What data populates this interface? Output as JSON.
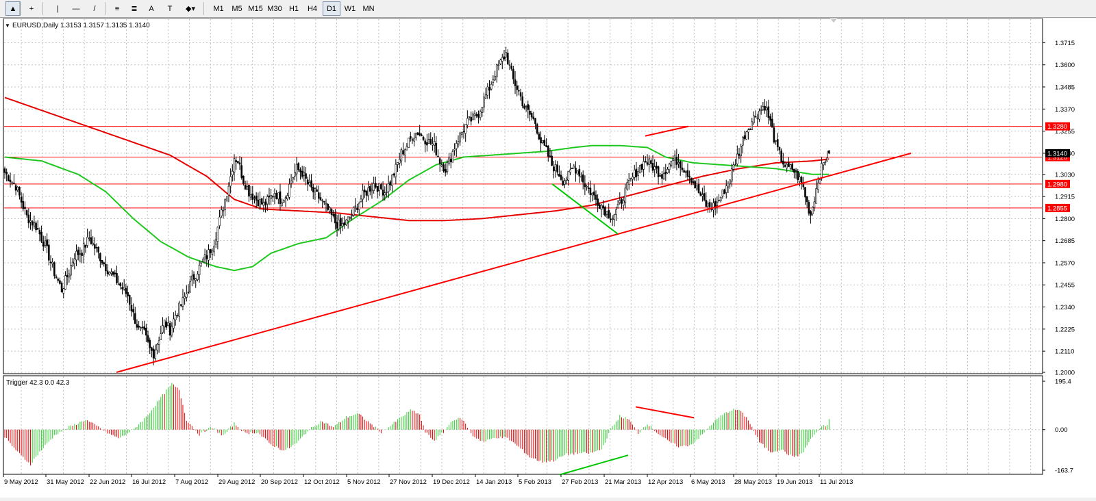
{
  "toolbar": {
    "tools": [
      {
        "name": "cursor-icon",
        "glyph": "▲"
      },
      {
        "name": "crosshair-icon",
        "glyph": "+"
      },
      {
        "name": "vertical-line-icon",
        "glyph": "|"
      },
      {
        "name": "horizontal-line-icon",
        "glyph": "—"
      },
      {
        "name": "trendline-icon",
        "glyph": "/"
      },
      {
        "name": "equidistant-channel-icon",
        "glyph": "≡"
      },
      {
        "name": "fibonacci-icon",
        "glyph": "≣"
      },
      {
        "name": "text-icon",
        "glyph": "A"
      },
      {
        "name": "text-label-icon",
        "glyph": "T"
      },
      {
        "name": "shapes-dropdown-icon",
        "glyph": "◆▾"
      }
    ],
    "timeframes": [
      "M1",
      "M5",
      "M15",
      "M30",
      "H1",
      "H4",
      "D1",
      "W1",
      "MN"
    ],
    "active_timeframe": "D1"
  },
  "chart_data": {
    "type": "candlestick",
    "symbol_header": "EURUSD,Daily  1.3153 1.3157 1.3135 1.3140",
    "price_axis": {
      "ylim": [
        1.2,
        1.377
      ],
      "ticks": [
        "1.3715",
        "1.3600",
        "1.3485",
        "1.3370",
        "1.3255",
        "1.3140",
        "1.3030",
        "1.2915",
        "1.2800",
        "1.2685",
        "1.2570",
        "1.2455",
        "1.2340",
        "1.2225",
        "1.2110",
        "1.2000"
      ]
    },
    "current_price": "1.3140",
    "horizontal_levels": [
      {
        "label": "1.3280",
        "price": 1.328
      },
      {
        "label": "1.3120",
        "price": 1.312
      },
      {
        "label": "1.2980",
        "price": 1.298
      },
      {
        "label": "1.2855",
        "price": 1.2855
      }
    ],
    "date_labels": [
      "9 May 2012",
      "31 May 2012",
      "22 Jun 2012",
      "16 Jul 2012",
      "7 Aug 2012",
      "29 Aug 2012",
      "20 Sep 2012",
      "12 Oct 2012",
      "5 Nov 2012",
      "27 Nov 2012",
      "19 Dec 2012",
      "14 Jan 2013",
      "5 Feb 2013",
      "27 Feb 2013",
      "21 Mar 2013",
      "12 Apr 2013",
      "6 May 2013",
      "28 May 2013",
      "19 Jun 2013",
      "11 Jul 2013"
    ],
    "price_path": [
      [
        0,
        1.304
      ],
      [
        6,
        1.297
      ],
      [
        12,
        1.281
      ],
      [
        17,
        1.276
      ],
      [
        22,
        1.266
      ],
      [
        27,
        1.252
      ],
      [
        31,
        1.243
      ],
      [
        34,
        1.25
      ],
      [
        38,
        1.261
      ],
      [
        42,
        1.263
      ],
      [
        46,
        1.27
      ],
      [
        49,
        1.265
      ],
      [
        52,
        1.26
      ],
      [
        55,
        1.255
      ],
      [
        59,
        1.25
      ],
      [
        63,
        1.245
      ],
      [
        67,
        1.24
      ],
      [
        70,
        1.23
      ],
      [
        73,
        1.222
      ],
      [
        76,
        1.22
      ],
      [
        79,
        1.212
      ],
      [
        81,
        1.21
      ],
      [
        84,
        1.218
      ],
      [
        87,
        1.226
      ],
      [
        90,
        1.222
      ],
      [
        93,
        1.23
      ],
      [
        96,
        1.235
      ],
      [
        99,
        1.241
      ],
      [
        102,
        1.248
      ],
      [
        105,
        1.253
      ],
      [
        108,
        1.258
      ],
      [
        111,
        1.262
      ],
      [
        114,
        1.268
      ],
      [
        117,
        1.279
      ],
      [
        120,
        1.29
      ],
      [
        123,
        1.302
      ],
      [
        125,
        1.312
      ],
      [
        127,
        1.31
      ],
      [
        130,
        1.3
      ],
      [
        133,
        1.294
      ],
      [
        137,
        1.29
      ],
      [
        141,
        1.287
      ],
      [
        144,
        1.29
      ],
      [
        147,
        1.294
      ],
      [
        150,
        1.29
      ],
      [
        153,
        1.292
      ],
      [
        156,
        1.3
      ],
      [
        159,
        1.306
      ],
      [
        162,
        1.304
      ],
      [
        165,
        1.298
      ],
      [
        168,
        1.294
      ],
      [
        171,
        1.291
      ],
      [
        174,
        1.287
      ],
      [
        177,
        1.283
      ],
      [
        180,
        1.278
      ],
      [
        183,
        1.276
      ],
      [
        186,
        1.278
      ],
      [
        189,
        1.282
      ],
      [
        192,
        1.287
      ],
      [
        195,
        1.292
      ],
      [
        198,
        1.295
      ],
      [
        201,
        1.298
      ],
      [
        204,
        1.296
      ],
      [
        207,
        1.294
      ],
      [
        210,
        1.299
      ],
      [
        213,
        1.306
      ],
      [
        216,
        1.314
      ],
      [
        219,
        1.318
      ],
      [
        222,
        1.323
      ],
      [
        225,
        1.325
      ],
      [
        228,
        1.322
      ],
      [
        231,
        1.32
      ],
      [
        234,
        1.318
      ],
      [
        237,
        1.31
      ],
      [
        240,
        1.306
      ],
      [
        243,
        1.312
      ],
      [
        246,
        1.32
      ],
      [
        249,
        1.325
      ],
      [
        252,
        1.33
      ],
      [
        255,
        1.332
      ],
      [
        258,
        1.335
      ],
      [
        261,
        1.342
      ],
      [
        264,
        1.348
      ],
      [
        267,
        1.356
      ],
      [
        270,
        1.361
      ],
      [
        273,
        1.366
      ],
      [
        275,
        1.359
      ],
      [
        277,
        1.352
      ],
      [
        280,
        1.346
      ],
      [
        283,
        1.338
      ],
      [
        286,
        1.334
      ],
      [
        289,
        1.33
      ],
      [
        292,
        1.32
      ],
      [
        295,
        1.315
      ],
      [
        298,
        1.308
      ],
      [
        301,
        1.305
      ],
      [
        304,
        1.3
      ],
      [
        307,
        1.302
      ],
      [
        310,
        1.307
      ],
      [
        313,
        1.304
      ],
      [
        316,
        1.298
      ],
      [
        319,
        1.294
      ],
      [
        322,
        1.29
      ],
      [
        325,
        1.287
      ],
      [
        328,
        1.283
      ],
      [
        331,
        1.281
      ],
      [
        334,
        1.285
      ],
      [
        337,
        1.292
      ],
      [
        340,
        1.298
      ],
      [
        343,
        1.303
      ],
      [
        346,
        1.307
      ],
      [
        349,
        1.31
      ],
      [
        352,
        1.308
      ],
      [
        355,
        1.305
      ],
      [
        358,
        1.303
      ],
      [
        361,
        1.307
      ],
      [
        364,
        1.311
      ],
      [
        367,
        1.31
      ],
      [
        370,
        1.306
      ],
      [
        373,
        1.303
      ],
      [
        376,
        1.297
      ],
      [
        379,
        1.292
      ],
      [
        382,
        1.287
      ],
      [
        385,
        1.286
      ],
      [
        388,
        1.288
      ],
      [
        391,
        1.293
      ],
      [
        394,
        1.299
      ],
      [
        397,
        1.307
      ],
      [
        400,
        1.315
      ],
      [
        403,
        1.324
      ],
      [
        406,
        1.329
      ],
      [
        409,
        1.334
      ],
      [
        412,
        1.337
      ],
      [
        414,
        1.339
      ],
      [
        417,
        1.33
      ],
      [
        420,
        1.318
      ],
      [
        423,
        1.311
      ],
      [
        426,
        1.306
      ],
      [
        429,
        1.306
      ],
      [
        432,
        1.302
      ],
      [
        435,
        1.296
      ],
      [
        437,
        1.288
      ],
      [
        439,
        1.282
      ],
      [
        441,
        1.291
      ],
      [
        443,
        1.3
      ],
      [
        445,
        1.306
      ],
      [
        447,
        1.311
      ],
      [
        449,
        1.315
      ]
    ],
    "ma_red_path": [
      [
        0,
        1.343
      ],
      [
        30,
        1.333
      ],
      [
        60,
        1.323
      ],
      [
        90,
        1.313
      ],
      [
        110,
        1.302
      ],
      [
        125,
        1.29
      ],
      [
        140,
        1.285
      ],
      [
        160,
        1.284
      ],
      [
        180,
        1.283
      ],
      [
        200,
        1.281
      ],
      [
        220,
        1.279
      ],
      [
        240,
        1.279
      ],
      [
        260,
        1.28
      ],
      [
        280,
        1.282
      ],
      [
        300,
        1.284
      ],
      [
        320,
        1.287
      ],
      [
        340,
        1.292
      ],
      [
        360,
        1.297
      ],
      [
        380,
        1.302
      ],
      [
        400,
        1.306
      ],
      [
        420,
        1.309
      ],
      [
        440,
        1.31
      ],
      [
        449,
        1.311
      ]
    ],
    "ma_green_path": [
      [
        0,
        1.312
      ],
      [
        20,
        1.31
      ],
      [
        40,
        1.303
      ],
      [
        55,
        1.294
      ],
      [
        70,
        1.28
      ],
      [
        85,
        1.268
      ],
      [
        100,
        1.26
      ],
      [
        115,
        1.255
      ],
      [
        125,
        1.253
      ],
      [
        135,
        1.255
      ],
      [
        145,
        1.262
      ],
      [
        160,
        1.267
      ],
      [
        175,
        1.27
      ],
      [
        190,
        1.28
      ],
      [
        205,
        1.289
      ],
      [
        220,
        1.3
      ],
      [
        235,
        1.308
      ],
      [
        250,
        1.312
      ],
      [
        265,
        1.313
      ],
      [
        280,
        1.314
      ],
      [
        295,
        1.315
      ],
      [
        310,
        1.317
      ],
      [
        320,
        1.318
      ],
      [
        335,
        1.318
      ],
      [
        350,
        1.317
      ],
      [
        360,
        1.312
      ],
      [
        375,
        1.309
      ],
      [
        390,
        1.308
      ],
      [
        405,
        1.307
      ],
      [
        420,
        1.306
      ],
      [
        440,
        1.303
      ],
      [
        449,
        1.303
      ]
    ],
    "trendlines": [
      {
        "color": "#ff0000",
        "pane": "price",
        "from": [
          170,
          1.2
        ],
        "to": [
          1330,
          1.314
        ]
      },
      {
        "color": "#ff0000",
        "pane": "price",
        "from": [
          942,
          1.323
        ],
        "to": [
          1005,
          1.328
        ]
      },
      {
        "color": "#00c800",
        "pane": "price",
        "from": [
          806,
          1.298
        ],
        "to": [
          902,
          1.272
        ]
      },
      {
        "color": "#ff0000",
        "pane": "indicator",
        "from": [
          928,
          92
        ],
        "to": [
          1013,
          48
        ]
      },
      {
        "color": "#00c800",
        "pane": "indicator",
        "from": [
          817,
          -182
        ],
        "to": [
          917,
          -103
        ]
      }
    ],
    "indicator": {
      "header": "Trigger 42.3 0.0 42.3",
      "ylim": [
        -163.7,
        195.4
      ],
      "ticks": [
        "195.4",
        "0.00",
        "-163.7"
      ],
      "last_value": 42.3,
      "keypoints": [
        [
          0,
          -30
        ],
        [
          15,
          -95
        ],
        [
          28,
          -140
        ],
        [
          38,
          -90
        ],
        [
          55,
          -20
        ],
        [
          70,
          10
        ],
        [
          88,
          40
        ],
        [
          100,
          15
        ],
        [
          115,
          -20
        ],
        [
          125,
          -35
        ],
        [
          140,
          0
        ],
        [
          155,
          55
        ],
        [
          168,
          120
        ],
        [
          182,
          185
        ],
        [
          190,
          160
        ],
        [
          198,
          40
        ],
        [
          212,
          -20
        ],
        [
          225,
          10
        ],
        [
          238,
          -25
        ],
        [
          250,
          25
        ],
        [
          262,
          -15
        ],
        [
          275,
          -10
        ],
        [
          290,
          -60
        ],
        [
          305,
          -85
        ],
        [
          318,
          -55
        ],
        [
          330,
          -5
        ],
        [
          345,
          35
        ],
        [
          358,
          10
        ],
        [
          372,
          50
        ],
        [
          385,
          65
        ],
        [
          398,
          25
        ],
        [
          410,
          -10
        ],
        [
          418,
          10
        ],
        [
          430,
          45
        ],
        [
          443,
          80
        ],
        [
          452,
          60
        ],
        [
          458,
          -10
        ],
        [
          468,
          -45
        ],
        [
          478,
          -10
        ],
        [
          488,
          40
        ],
        [
          498,
          45
        ],
        [
          510,
          -25
        ],
        [
          522,
          -50
        ],
        [
          535,
          -30
        ],
        [
          548,
          -35
        ],
        [
          560,
          -70
        ],
        [
          572,
          -110
        ],
        [
          585,
          -130
        ],
        [
          598,
          -125
        ],
        [
          612,
          -100
        ],
        [
          625,
          -95
        ],
        [
          638,
          -95
        ],
        [
          650,
          -80
        ],
        [
          660,
          0
        ],
        [
          670,
          55
        ],
        [
          680,
          40
        ],
        [
          690,
          -15
        ],
        [
          700,
          25
        ],
        [
          710,
          -10
        ],
        [
          722,
          -45
        ],
        [
          735,
          -70
        ],
        [
          748,
          -60
        ],
        [
          760,
          -20
        ],
        [
          772,
          30
        ],
        [
          782,
          60
        ],
        [
          792,
          80
        ],
        [
          800,
          80
        ],
        [
          810,
          40
        ],
        [
          822,
          -50
        ],
        [
          834,
          -90
        ],
        [
          846,
          -80
        ],
        [
          858,
          -110
        ],
        [
          868,
          -100
        ],
        [
          876,
          -50
        ],
        [
          884,
          -10
        ],
        [
          892,
          15
        ]
      ]
    }
  }
}
